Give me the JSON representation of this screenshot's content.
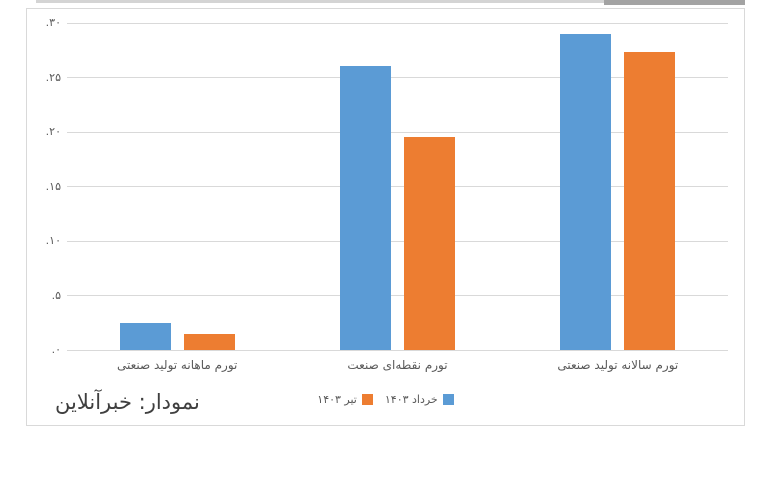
{
  "page": {
    "background": "#ffffff"
  },
  "artifacts": {
    "top_border_light_color": "#d4d4d4",
    "top_border_dark_color": "#a3a3a3",
    "frame_border_color": "#d9d9d9"
  },
  "chart_data": {
    "type": "bar",
    "title": "",
    "xlabel": "",
    "ylabel": "",
    "direction": "rtl",
    "categories": [
      "تورم ماهانه تولید صنعتی",
      "تورم نقطه‌ای صنعت",
      "تورم سالانه تولید صنعتی"
    ],
    "series": [
      {
        "name": "خرداد ۱۴۰۳",
        "color": "#5B9BD5",
        "values": [
          2.5,
          26.1,
          29.0
        ]
      },
      {
        "name": "تیر ۱۴۰۳",
        "color": "#ED7D31",
        "values": [
          1.5,
          19.5,
          27.3
        ]
      }
    ],
    "ylim": [
      0,
      30
    ],
    "yticks": [
      0,
      5,
      10,
      15,
      20,
      25,
      30
    ],
    "ytick_labels": [
      ".۰",
      ".۵",
      ".۱۰",
      ".۱۵",
      ".۲۰",
      ".۲۵",
      ".۳۰"
    ],
    "grid": "horizontal",
    "gridline_color": "#d9d9d9",
    "axis_text_color": "#595959",
    "legend_position": "bottom-center"
  },
  "credit": {
    "text": "نمودار: خبرآنلاین",
    "color": "#3f3f3f"
  }
}
